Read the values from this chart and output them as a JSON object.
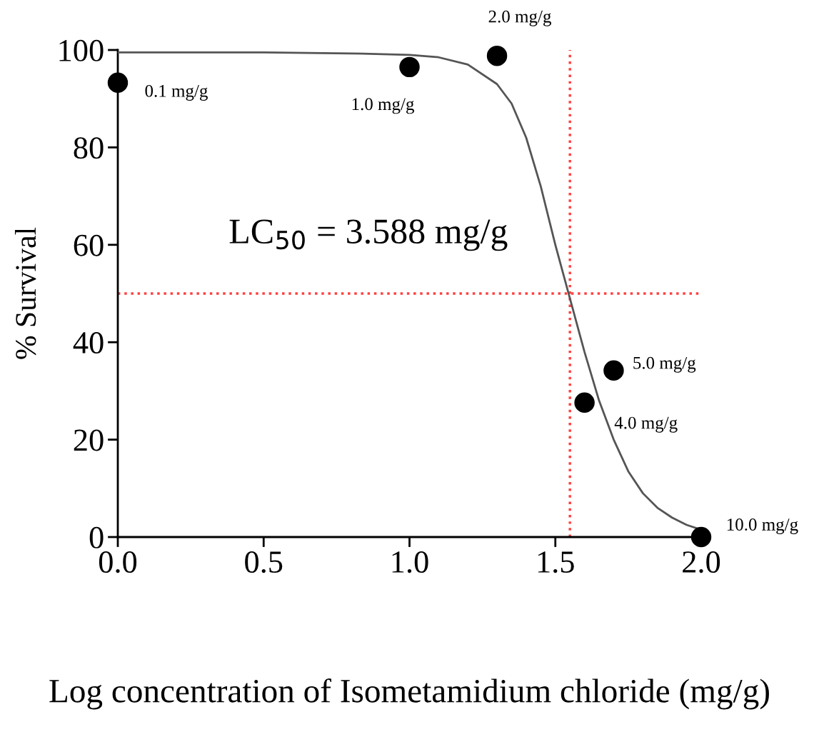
{
  "chart_data": {
    "type": "scatter",
    "xlabel": "Log concentration of Isometamidium chloride (mg/g)",
    "ylabel": "% Survival",
    "xlim": [
      0.0,
      2.0
    ],
    "xticks": [
      {
        "value": 0,
        "label": "0.0"
      },
      {
        "value": 0.5,
        "label": "0.5"
      },
      {
        "value": 1,
        "label": "1.0"
      },
      {
        "value": 1.5,
        "label": "1.5"
      },
      {
        "value": 2,
        "label": "2.0"
      }
    ],
    "ylim": [
      0,
      100
    ],
    "yticks": [
      0,
      20,
      40,
      60,
      80,
      100
    ],
    "grid": false,
    "legend": false,
    "series": [
      {
        "color": "#000000",
        "marker": "circle",
        "x": [
          0.0,
          1.0,
          1.3,
          1.6,
          1.7,
          2.0
        ],
        "values": [
          93.3,
          96.5,
          98.8,
          27.6,
          34.2,
          0.0
        ]
      },
      {
        "type": "line",
        "color": "#555555",
        "line_style": "solid",
        "marker": "none",
        "x": [
          0.0,
          0.5,
          0.8,
          1.0,
          1.1,
          1.2,
          1.3,
          1.35,
          1.4,
          1.45,
          1.5,
          1.55,
          1.6,
          1.65,
          1.7,
          1.75,
          1.8,
          1.85,
          1.9,
          1.95,
          2.0
        ],
        "values": [
          99.5,
          99.5,
          99.3,
          99,
          98.5,
          97,
          93,
          89,
          82,
          72,
          60,
          49,
          38,
          28,
          20,
          13.5,
          9,
          6,
          4,
          2.5,
          1.5
        ]
      }
    ],
    "ref_lines": [
      {
        "axis": "x",
        "value": 1.55,
        "color": "#ff4040",
        "line_style": "dotted"
      },
      {
        "axis": "y",
        "value": 50,
        "color": "#ff4040",
        "line_style": "dotted"
      }
    ],
    "annotations": [
      {
        "text": "0.1 mg/g",
        "x": 0.0,
        "y": 93.3
      },
      {
        "text": "1.0 mg/g",
        "x": 1.0,
        "y": 96.5
      },
      {
        "text": "2.0 mg/g",
        "x": 1.3,
        "y": 98.8
      },
      {
        "text": "4.0 mg/g",
        "x": 1.6,
        "y": 27.6
      },
      {
        "text": "5.0 mg/g",
        "x": 1.7,
        "y": 34.2
      },
      {
        "text": "10.0 mg/g",
        "x": 2.0,
        "y": 0.0
      },
      "LC$_{50}$ = 3.588 mg/g"
    ]
  }
}
